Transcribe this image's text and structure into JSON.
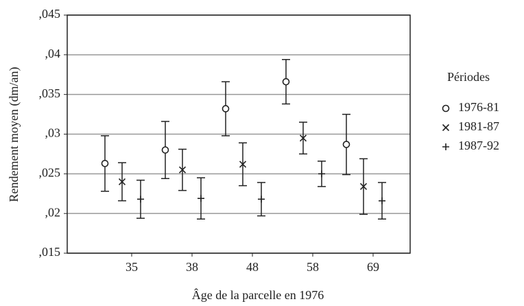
{
  "chart_data": {
    "type": "errorbar",
    "x_label": "Âge de la parcelle en 1976",
    "y_label": "Rendement moyen (dm/an)",
    "legend_title": "Périodes",
    "categories": [
      "35",
      "38",
      "48",
      "58",
      "69"
    ],
    "series": [
      {
        "name": "1976-81",
        "marker": "circle",
        "color": "#222222",
        "values": [
          0.0263,
          0.028,
          0.0332,
          0.0366,
          0.0287
        ],
        "errors": [
          0.0035,
          0.0036,
          0.0034,
          0.0028,
          0.0038
        ]
      },
      {
        "name": "1981-87",
        "marker": "x",
        "color": "#222222",
        "values": [
          0.024,
          0.0255,
          0.0262,
          0.0295,
          0.0234
        ],
        "errors": [
          0.0024,
          0.0026,
          0.0027,
          0.002,
          0.0035
        ]
      },
      {
        "name": "1987-92",
        "marker": "plus",
        "color": "#222222",
        "values": [
          0.0218,
          0.0219,
          0.0218,
          0.025,
          0.0216
        ],
        "errors": [
          0.0024,
          0.0026,
          0.0021,
          0.0016,
          0.0023
        ]
      }
    ],
    "ylim": [
      0.015,
      0.045
    ],
    "yticks": [
      {
        "value": 0.015,
        "label": ",015"
      },
      {
        "value": 0.02,
        "label": ",02"
      },
      {
        "value": 0.025,
        "label": ",025"
      },
      {
        "value": 0.03,
        "label": ",03"
      },
      {
        "value": 0.035,
        "label": ",035"
      },
      {
        "value": 0.04,
        "label": ",04"
      },
      {
        "value": 0.045,
        "label": ",045"
      }
    ],
    "grid": true,
    "legend": "right"
  }
}
